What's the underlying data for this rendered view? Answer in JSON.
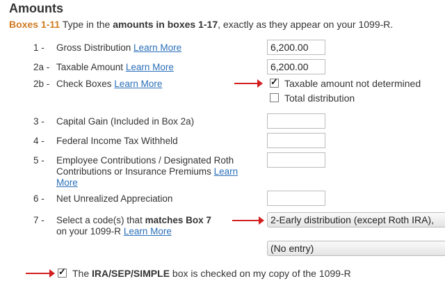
{
  "title": "Amounts",
  "subtitle": {
    "boxes": "Boxes 1-11",
    "t1": " Type in the ",
    "bold": "amounts in boxes 1-17",
    "t2": ", exactly as they appear on your 1099-R."
  },
  "learn_more": "Learn More",
  "rows": [
    {
      "num": "1 -",
      "label": "Gross Distribution ",
      "value": "6,200.00"
    },
    {
      "num": "2a -",
      "label": "Taxable Amount ",
      "value": "6,200.00"
    },
    {
      "num": "2b -",
      "label": "Check Boxes "
    },
    {
      "num": "3 -",
      "label": "Capital Gain (Included in Box 2a)",
      "value": ""
    },
    {
      "num": "4 -",
      "label": "Federal Income Tax Withheld",
      "value": ""
    },
    {
      "num": "5 -",
      "label": "Employee Contributions / Designated Roth Contributions or Insurance Premiums ",
      "value": ""
    },
    {
      "num": "6 -",
      "label": "Net Unrealized Appreciation",
      "value": ""
    },
    {
      "num": "7 -",
      "label_a": "Select a code(s) that ",
      "label_bold": "matches Box 7",
      "label_b": "on your 1099-R "
    }
  ],
  "checkboxes": {
    "taxable_not_determined": {
      "label": "Taxable amount not determined",
      "checked": true
    },
    "total_distribution": {
      "label": "Total distribution",
      "checked": false
    }
  },
  "box7": {
    "code1": "2-Early distribution (except Roth IRA),",
    "code2": "(No entry)"
  },
  "ira": {
    "checked": true,
    "t1": "The ",
    "bold": "IRA/SEP/SIMPLE",
    "t2": " box is checked on my copy of the 1099-R"
  },
  "colors": {
    "accent": "#d07a1f",
    "link": "#2a6fb8",
    "arrow": "#d21f1f"
  }
}
